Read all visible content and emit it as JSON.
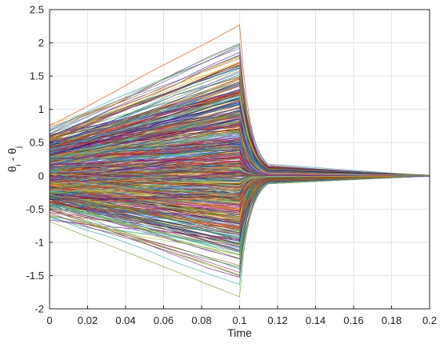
{
  "chart_data": {
    "type": "line",
    "title": "",
    "xlabel": "Time",
    "ylabel": "θi - θj",
    "xlim": [
      0,
      0.2
    ],
    "ylim": [
      -2,
      2.5
    ],
    "x_ticks": [
      "0",
      "0.02",
      "0.04",
      "0.06",
      "0.08",
      "0.1",
      "0.12",
      "0.14",
      "0.16",
      "0.18",
      "0.2"
    ],
    "y_ticks": [
      "-2",
      "-1.5",
      "-1",
      "-0.5",
      "0",
      "0.5",
      "1",
      "1.5",
      "2",
      "2.5"
    ],
    "grid": true,
    "legend": "none",
    "series_count": 600,
    "initial_range": [
      -0.85,
      0.97
    ],
    "peak_time": 0.1,
    "peak_range": [
      -1.82,
      2.27
    ],
    "converged_value": 0,
    "convergence_time": 0.115,
    "colors": [
      "#0072bd",
      "#d95319",
      "#edb120",
      "#7e2f8e",
      "#77ac30",
      "#4dbeee",
      "#a2142f",
      "#1f1f8f",
      "#2e8b57",
      "#c71585",
      "#ff4500",
      "#8b4513",
      "#20b2aa",
      "#9acd32",
      "#6a5acd"
    ]
  }
}
